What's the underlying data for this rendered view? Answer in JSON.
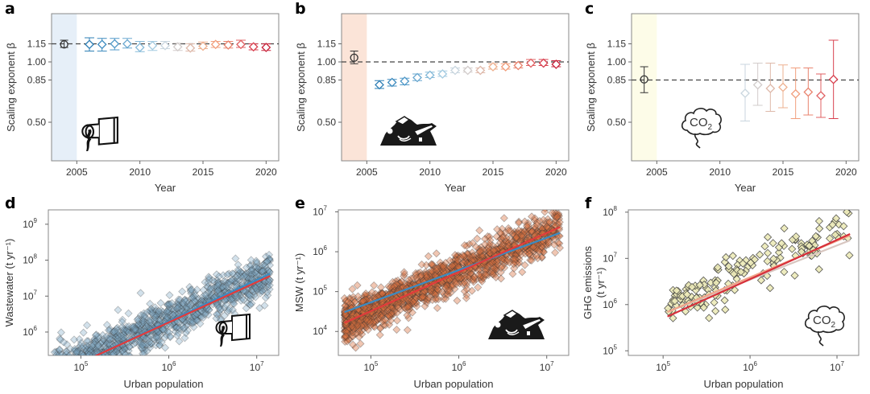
{
  "chart_data": [
    {
      "panel": "a",
      "type": "scatter",
      "title": "",
      "xlabel": "Year",
      "ylabel": "Scaling exponent β",
      "xlim": [
        2003,
        2021
      ],
      "ylim": [
        0.18,
        1.4
      ],
      "xticks": [
        2005,
        2010,
        2015,
        2020
      ],
      "xtick_labels": [
        "2005",
        "2010",
        "2015",
        "2020"
      ],
      "yticks": [
        0.5,
        0.85,
        1.0,
        1.15
      ],
      "ytick_labels": [
        "0.50",
        "0.85",
        "1.00",
        "1.15"
      ],
      "reference_line": 1.15,
      "shade_band": [
        2003,
        2005
      ],
      "shade_color": "#e6eff8",
      "pooled": {
        "x": 2004,
        "y": 1.145,
        "low": 1.12,
        "high": 1.18
      },
      "years": [
        2006,
        2007,
        2008,
        2009,
        2010,
        2011,
        2012,
        2013,
        2014,
        2015,
        2016,
        2017,
        2018,
        2019,
        2020
      ],
      "values": [
        1.145,
        1.145,
        1.15,
        1.15,
        1.12,
        1.135,
        1.135,
        1.125,
        1.115,
        1.13,
        1.145,
        1.14,
        1.145,
        1.125,
        1.12
      ],
      "err_low": [
        1.09,
        1.09,
        1.1,
        1.115,
        1.085,
        1.095,
        1.11,
        1.095,
        1.09,
        1.11,
        1.12,
        1.115,
        1.12,
        1.1,
        1.095
      ],
      "err_high": [
        1.2,
        1.195,
        1.195,
        1.195,
        1.17,
        1.17,
        1.17,
        1.155,
        1.15,
        1.165,
        1.17,
        1.17,
        1.18,
        1.15,
        1.15
      ],
      "icon": "wastewater-pipe-icon"
    },
    {
      "panel": "b",
      "type": "scatter",
      "title": "",
      "xlabel": "Year",
      "ylabel": "Scaling exponent β",
      "xlim": [
        2003,
        2021
      ],
      "ylim": [
        0.18,
        1.4
      ],
      "xticks": [
        2005,
        2010,
        2015,
        2020
      ],
      "xtick_labels": [
        "2005",
        "2010",
        "2015",
        "2020"
      ],
      "yticks": [
        0.5,
        0.85,
        1.0,
        1.15
      ],
      "ytick_labels": [
        "0.50",
        "0.85",
        "1.00",
        "1.15"
      ],
      "reference_line": 1.0,
      "shade_band": [
        2003,
        2005
      ],
      "shade_color": "#fbe4d8",
      "pooled": {
        "x": 2004,
        "y": 1.035,
        "low": 0.985,
        "high": 1.09
      },
      "years": [
        2006,
        2007,
        2008,
        2009,
        2010,
        2011,
        2012,
        2013,
        2014,
        2015,
        2016,
        2017,
        2018,
        2019,
        2020
      ],
      "values": [
        0.81,
        0.83,
        0.84,
        0.87,
        0.89,
        0.9,
        0.93,
        0.93,
        0.93,
        0.96,
        0.96,
        0.97,
        0.99,
        0.99,
        0.98
      ],
      "err_low": [
        0.78,
        0.8,
        0.81,
        0.845,
        0.87,
        0.88,
        0.91,
        0.915,
        0.91,
        0.94,
        0.94,
        0.95,
        0.97,
        0.97,
        0.96
      ],
      "err_high": [
        0.845,
        0.855,
        0.865,
        0.9,
        0.915,
        0.925,
        0.95,
        0.95,
        0.95,
        0.985,
        0.985,
        0.995,
        1.02,
        1.02,
        1.01
      ],
      "icon": "garbage-pile-icon"
    },
    {
      "panel": "c",
      "type": "scatter",
      "title": "",
      "xlabel": "Year",
      "ylabel": "Scaling exponent β",
      "xlim": [
        2003,
        2021
      ],
      "ylim": [
        0.18,
        1.4
      ],
      "xticks": [
        2005,
        2010,
        2015,
        2020
      ],
      "xtick_labels": [
        "2005",
        "2010",
        "2015",
        "2020"
      ],
      "yticks": [
        0.5,
        0.85,
        1.0,
        1.15
      ],
      "ytick_labels": [
        "0.50",
        "0.85",
        "1.00",
        "1.15"
      ],
      "reference_line": 0.85,
      "shade_band": [
        2003,
        2005
      ],
      "shade_color": "#fdfce8",
      "pooled": {
        "x": 2004,
        "y": 0.855,
        "low": 0.745,
        "high": 0.96
      },
      "years": [
        2012,
        2013,
        2014,
        2015,
        2016,
        2017,
        2018,
        2019
      ],
      "values": [
        0.74,
        0.81,
        0.78,
        0.79,
        0.735,
        0.75,
        0.72,
        0.855
      ],
      "err_low": [
        0.51,
        0.64,
        0.59,
        0.62,
        0.53,
        0.56,
        0.54,
        0.53
      ],
      "err_high": [
        0.98,
        0.99,
        0.99,
        0.975,
        0.95,
        0.95,
        0.9,
        1.18
      ],
      "icon": "co2-cloud-icon",
      "icon_text": "CO",
      "icon_subscript": "2"
    },
    {
      "panel": "d",
      "type": "scatter",
      "title": "",
      "xlabel": "Urban population",
      "ylabel": "Wastewater (t yr⁻¹)",
      "xscale": "log",
      "yscale": "log",
      "xlim_log10": [
        4.63,
        7.25
      ],
      "ylim_log10": [
        5.35,
        9.4
      ],
      "xtick_exponents": [
        5,
        6,
        7
      ],
      "ytick_exponents": [
        6,
        7,
        8,
        9
      ],
      "tick_base": "10",
      "marker_color": "#7ea9c6",
      "point_cloud": {
        "x_log10_range": [
          4.7,
          7.15
        ],
        "intercept_log10": -0.57,
        "slope": 1.15,
        "scatter_sd_log10": 0.3,
        "count": 1400
      },
      "fit_lines": [
        {
          "name": "early-years",
          "color": "#3b8bc2",
          "slope": 1.15,
          "intercept_log10": -0.6
        },
        {
          "name": "late-years",
          "color": "#e23b3b",
          "slope": 1.12,
          "intercept_log10": -0.45
        }
      ],
      "icon": "wastewater-pipe-icon"
    },
    {
      "panel": "e",
      "type": "scatter",
      "title": "",
      "xlabel": "Urban population",
      "ylabel": "MSW (t yr⁻¹)",
      "xscale": "log",
      "yscale": "log",
      "xlim_log10": [
        4.63,
        7.25
      ],
      "ylim_log10": [
        3.4,
        7.05
      ],
      "xtick_exponents": [
        5,
        6,
        7
      ],
      "ytick_exponents": [
        4,
        5,
        6,
        7
      ],
      "tick_base": "10",
      "marker_color": "#d9703f",
      "point_cloud": {
        "x_log10_range": [
          4.7,
          7.15
        ],
        "intercept_log10": -0.2,
        "slope": 0.95,
        "scatter_sd_log10": 0.25,
        "count": 1600
      },
      "fit_lines": [
        {
          "name": "early-years",
          "color": "#3b8bc2",
          "slope": 0.81,
          "intercept_log10": 0.68
        },
        {
          "name": "late-years",
          "color": "#e23b3b",
          "slope": 0.98,
          "intercept_log10": -0.39
        }
      ],
      "icon": "garbage-pile-icon"
    },
    {
      "panel": "f",
      "type": "scatter",
      "title": "",
      "xlabel": "Urban population",
      "ylabel": "GHG emissions (t yr⁻¹)",
      "ylabel_line1": "GHG emissions",
      "ylabel_line2": "(t yr⁻¹)",
      "xscale": "log",
      "yscale": "log",
      "xlim_log10": [
        4.6,
        7.25
      ],
      "ylim_log10": [
        4.9,
        8.05
      ],
      "xtick_exponents": [
        5,
        6,
        7
      ],
      "ytick_exponents": [
        5,
        6,
        7,
        8
      ],
      "tick_base": "10",
      "marker_color": "#eceab8",
      "point_cloud": {
        "x_log10_range": [
          5.05,
          7.15
        ],
        "intercept_log10": 1.8,
        "slope": 0.82,
        "scatter_sd_log10": 0.25,
        "count": 170
      },
      "fit_lines": [
        {
          "name": "2012",
          "color": "#d8c6c0",
          "slope": 0.74,
          "intercept_log10": 2.1
        },
        {
          "name": "2015",
          "color": "#f0a48a",
          "slope": 0.79,
          "intercept_log10": 1.85
        },
        {
          "name": "2019",
          "color": "#d7303a",
          "slope": 0.85,
          "intercept_log10": 1.45
        }
      ],
      "icon": "co2-cloud-icon",
      "icon_text": "CO",
      "icon_subscript": "2"
    }
  ],
  "panel_letters": [
    "a",
    "b",
    "c",
    "d",
    "e",
    "f"
  ],
  "year_colors": {
    "2006": "#2e7fb5",
    "2007": "#3f8cbf",
    "2008": "#5199c8",
    "2009": "#6aa8d0",
    "2010": "#86bad9",
    "2011": "#a4cbe1",
    "2012": "#c9d6df",
    "2013": "#d2cccb",
    "2014": "#deb9aa",
    "2015": "#eeb08f",
    "2016": "#f19e7c",
    "2017": "#e9846f",
    "2018": "#e06163",
    "2019": "#d8404f",
    "2020": "#c8263d"
  },
  "pooled_color": "#333333",
  "reference_line_color": "#444444"
}
